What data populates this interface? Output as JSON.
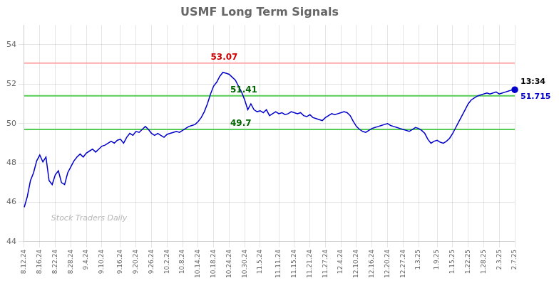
{
  "chart_data": {
    "type": "line",
    "title": "USMF Long Term Signals",
    "categories": [
      "8.12.24",
      null,
      null,
      null,
      null,
      "8.16.24",
      null,
      null,
      null,
      null,
      "8.22.24",
      null,
      null,
      null,
      null,
      "8.28.24",
      null,
      null,
      null,
      null,
      "9.4.24",
      null,
      null,
      null,
      null,
      "9.10.24",
      null,
      null,
      null,
      null,
      null,
      "9.16.24",
      null,
      null,
      null,
      null,
      "9.20.24",
      null,
      null,
      null,
      null,
      "9.26.24",
      null,
      null,
      null,
      null,
      "10.2.24",
      null,
      null,
      null,
      null,
      "10.8.24",
      null,
      null,
      null,
      null,
      "10.14.24",
      null,
      null,
      null,
      null,
      "10.18.24",
      null,
      null,
      null,
      null,
      "10.24.24",
      null,
      null,
      null,
      null,
      "10.30.24",
      null,
      null,
      null,
      null,
      "11.5.24",
      null,
      null,
      null,
      null,
      null,
      "11.11.24",
      null,
      null,
      null,
      null,
      "11.15.24",
      null,
      null,
      null,
      null,
      "11.21.24",
      null,
      null,
      null,
      null,
      "11.27.24",
      null,
      null,
      null,
      null,
      "12.4.24",
      null,
      null,
      null,
      null,
      "12.10.24",
      null,
      null,
      null,
      null,
      "12.16.24",
      null,
      null,
      null,
      null,
      "12.20.24",
      null,
      null,
      null,
      null,
      "12.27.24",
      null,
      null,
      null,
      null,
      "1.3.25",
      null,
      null,
      null,
      null,
      null,
      "1.9.25",
      null,
      null,
      null,
      null,
      "1.15.25",
      null,
      null,
      null,
      null,
      "1.22.25",
      null,
      null,
      null,
      null,
      "1.28.25",
      null,
      null,
      null,
      null,
      "2.3.25",
      null,
      null,
      null,
      null,
      "2.7.25"
    ],
    "values": [
      45.75,
      46.3,
      47.1,
      47.5,
      48.1,
      48.4,
      48.05,
      48.3,
      47.1,
      46.9,
      47.4,
      47.6,
      47.0,
      46.9,
      47.5,
      47.8,
      48.1,
      48.3,
      48.45,
      48.3,
      48.5,
      48.6,
      48.7,
      48.55,
      48.7,
      48.85,
      48.9,
      49.0,
      49.1,
      49.0,
      49.15,
      49.2,
      49.0,
      49.3,
      49.5,
      49.4,
      49.6,
      49.55,
      49.7,
      49.85,
      49.7,
      49.5,
      49.4,
      49.5,
      49.4,
      49.3,
      49.45,
      49.5,
      49.55,
      49.6,
      49.55,
      49.65,
      49.75,
      49.85,
      49.9,
      49.95,
      50.1,
      50.3,
      50.6,
      51.0,
      51.5,
      51.9,
      52.1,
      52.4,
      52.6,
      52.55,
      52.5,
      52.35,
      52.2,
      51.9,
      51.6,
      51.2,
      50.7,
      51.0,
      50.7,
      50.6,
      50.65,
      50.55,
      50.7,
      50.4,
      50.5,
      50.6,
      50.5,
      50.55,
      50.45,
      50.5,
      50.6,
      50.55,
      50.5,
      50.55,
      50.4,
      50.35,
      50.45,
      50.3,
      50.25,
      50.2,
      50.15,
      50.3,
      50.4,
      50.5,
      50.45,
      50.5,
      50.55,
      50.6,
      50.55,
      50.4,
      50.1,
      49.85,
      49.7,
      49.6,
      49.55,
      49.65,
      49.75,
      49.8,
      49.85,
      49.9,
      49.95,
      50.0,
      49.9,
      49.85,
      49.8,
      49.75,
      49.7,
      49.65,
      49.6,
      49.7,
      49.8,
      49.75,
      49.65,
      49.5,
      49.2,
      49.0,
      49.1,
      49.15,
      49.05,
      49.0,
      49.1,
      49.25,
      49.5,
      49.8,
      50.1,
      50.4,
      50.7,
      51.0,
      51.2,
      51.3,
      51.4,
      51.45,
      51.5,
      51.55,
      51.5,
      51.55,
      51.6,
      51.5,
      51.55,
      51.6,
      51.65,
      51.7,
      51.715
    ],
    "color": "#0000cc",
    "ylim": [
      44,
      55
    ],
    "yticks": [
      44,
      46,
      48,
      50,
      52,
      54
    ],
    "grid": true,
    "horizontal_lines": [
      {
        "value": 53.07,
        "color": "#ffaaaa",
        "label_color": "#cc0000"
      },
      {
        "value": 51.41,
        "color": "#55cc55",
        "label_color": "#006600"
      },
      {
        "value": 49.7,
        "color": "#55cc55",
        "label_color": "#006600"
      }
    ],
    "last_point_labels": {
      "time": "13:34",
      "price": 51.715
    },
    "watermark": "Stock Traders Daily"
  }
}
